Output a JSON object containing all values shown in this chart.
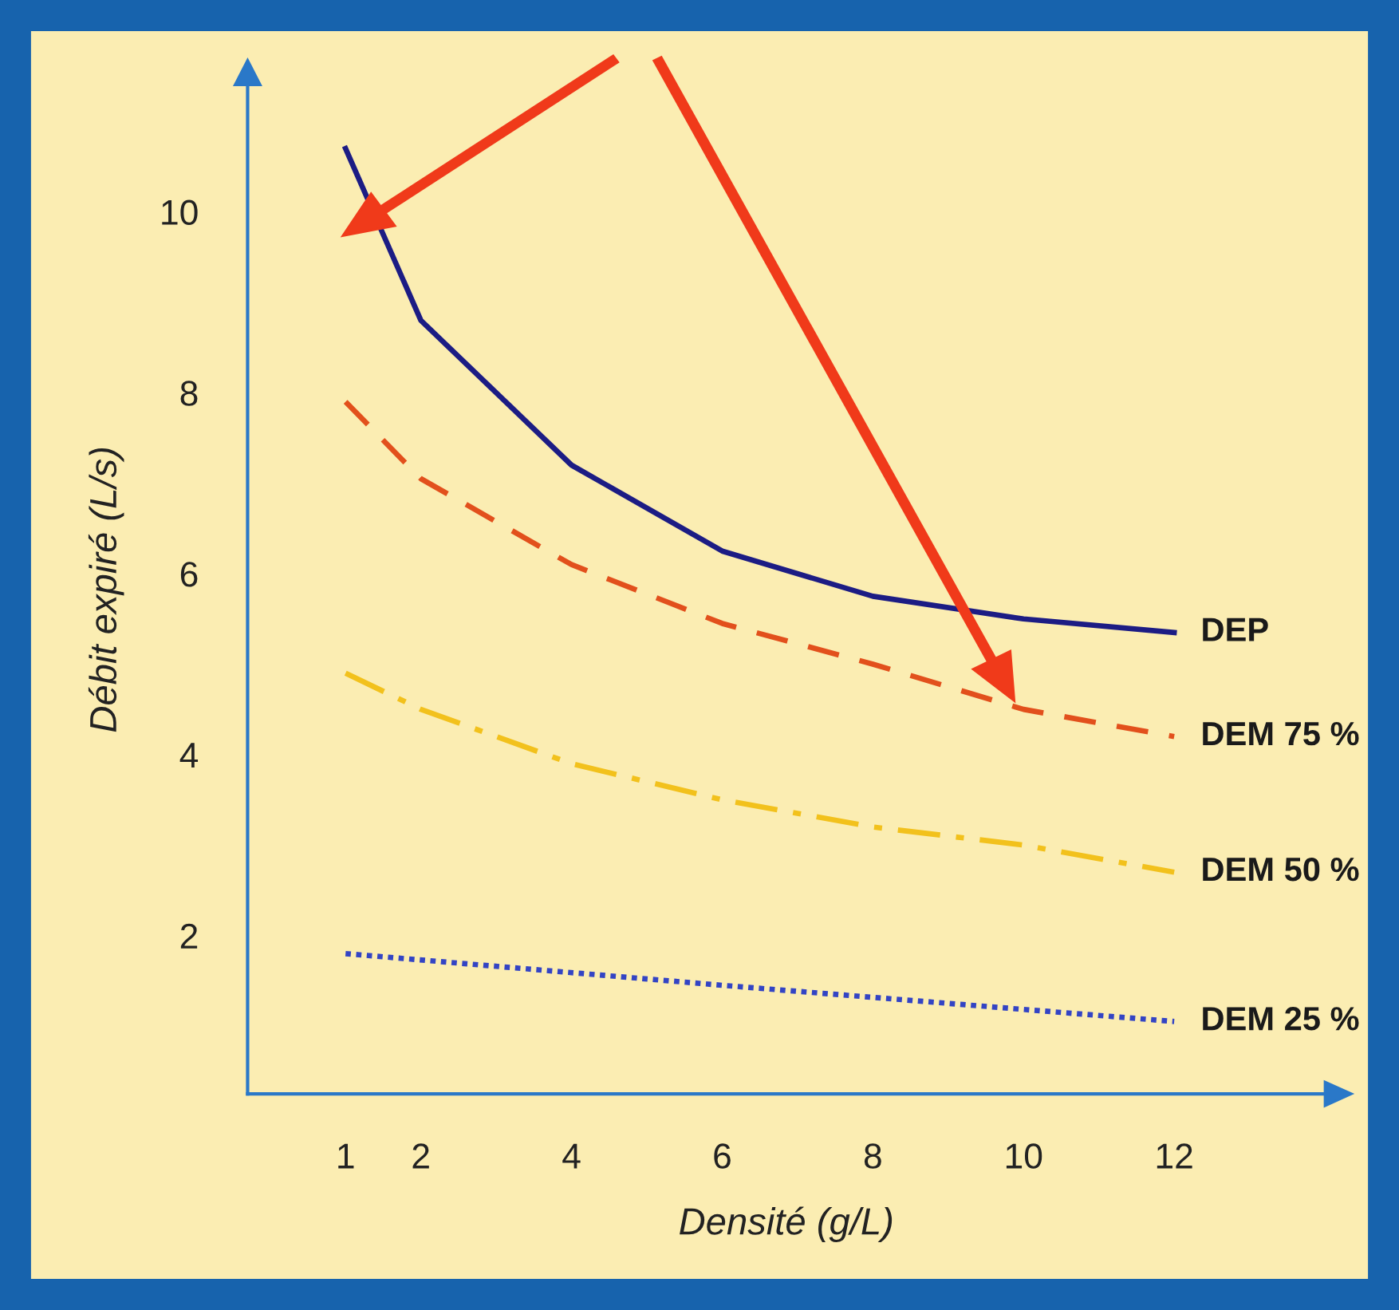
{
  "chart_data": {
    "type": "line",
    "xlabel": "Densité (g/L)",
    "ylabel": "Débit expiré (L/s)",
    "xlim": [
      -0.3,
      14
    ],
    "ylim": [
      0.25,
      11.4
    ],
    "xticks": [
      1,
      2,
      4,
      6,
      8,
      10,
      12
    ],
    "yticks": [
      2,
      4,
      6,
      8,
      10
    ],
    "grid": false,
    "legend": false,
    "marker": "none",
    "series": [
      {
        "name": "DEP",
        "color": "#1c1c84",
        "line_style": "solid",
        "x": [
          1,
          2,
          4,
          6,
          8,
          10,
          12
        ],
        "values": [
          10.7,
          8.8,
          7.2,
          6.25,
          5.75,
          5.5,
          5.35
        ]
      },
      {
        "name": "DEM 75 %",
        "color": "#e2501c",
        "line_style": "dashed",
        "x": [
          1,
          2,
          4,
          6,
          8,
          10,
          12
        ],
        "values": [
          7.9,
          7.05,
          6.1,
          5.45,
          5.0,
          4.5,
          4.2
        ]
      },
      {
        "name": "DEM 50 %",
        "color": "#f2c11c",
        "line_style": "dashdot",
        "x": [
          1,
          2,
          4,
          6,
          8,
          10,
          12
        ],
        "values": [
          4.9,
          4.5,
          3.9,
          3.5,
          3.2,
          3.0,
          2.7
        ]
      },
      {
        "name": "DEM 25 %",
        "color": "#3344c4",
        "line_style": "dotted",
        "x": [
          1,
          6,
          12
        ],
        "values": [
          1.8,
          1.45,
          1.05
        ]
      }
    ]
  }
}
